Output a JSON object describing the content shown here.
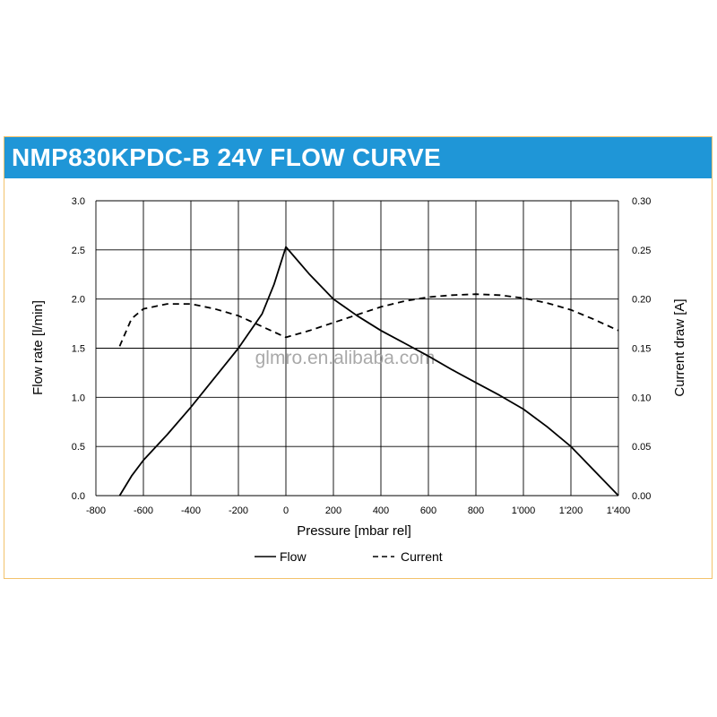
{
  "header": {
    "title": "NMP830KPDC-B 24V FLOW CURVE"
  },
  "watermark": "glmro.en.alibaba.com",
  "colors": {
    "title_bar": "#1f96d7",
    "panel_border": "#f3c26b",
    "lines": "#000000",
    "grid": "#000000"
  },
  "chart_data": {
    "type": "line",
    "title": "NMP830KPDC-B 24V FLOW CURVE",
    "xlabel": "Pressure [mbar rel]",
    "ylabel": "Flow rate [l/min]",
    "y2label": "Current draw [A]",
    "xlim": [
      -800,
      1400
    ],
    "ylim": [
      0,
      3.0
    ],
    "y2lim": [
      0,
      0.3
    ],
    "grid": true,
    "legend_position": "bottom",
    "x_ticks": [
      {
        "v": -800,
        "label": "-800"
      },
      {
        "v": -600,
        "label": "-600"
      },
      {
        "v": -400,
        "label": "-400"
      },
      {
        "v": -200,
        "label": "-200"
      },
      {
        "v": 0,
        "label": "0"
      },
      {
        "v": 200,
        "label": "200"
      },
      {
        "v": 400,
        "label": "400"
      },
      {
        "v": 600,
        "label": "600"
      },
      {
        "v": 800,
        "label": "800"
      },
      {
        "v": 1000,
        "label": "1'000"
      },
      {
        "v": 1200,
        "label": "1'200"
      },
      {
        "v": 1400,
        "label": "1'400"
      }
    ],
    "y_ticks": [
      {
        "v": 0,
        "label": "0.0"
      },
      {
        "v": 0.5,
        "label": "0.5"
      },
      {
        "v": 1.0,
        "label": "1.0"
      },
      {
        "v": 1.5,
        "label": "1.5"
      },
      {
        "v": 2.0,
        "label": "2.0"
      },
      {
        "v": 2.5,
        "label": "2.5"
      },
      {
        "v": 3.0,
        "label": "3.0"
      }
    ],
    "y2_ticks": [
      {
        "v": 0,
        "label": "0.00"
      },
      {
        "v": 0.05,
        "label": "0.05"
      },
      {
        "v": 0.1,
        "label": "0.10"
      },
      {
        "v": 0.15,
        "label": "0.15"
      },
      {
        "v": 0.2,
        "label": "0.20"
      },
      {
        "v": 0.25,
        "label": "0.25"
      },
      {
        "v": 0.3,
        "label": "0.30"
      }
    ],
    "series": [
      {
        "name": "Flow",
        "axis": "left",
        "style": "solid",
        "x": [
          -700,
          -650,
          -600,
          -500,
          -400,
          -300,
          -200,
          -100,
          -50,
          0,
          100,
          200,
          300,
          400,
          500,
          600,
          700,
          800,
          900,
          1000,
          1100,
          1200,
          1300,
          1400
        ],
        "y": [
          0.0,
          0.2,
          0.36,
          0.62,
          0.9,
          1.2,
          1.5,
          1.85,
          2.15,
          2.53,
          2.25,
          2.0,
          1.83,
          1.68,
          1.55,
          1.42,
          1.28,
          1.15,
          1.02,
          0.88,
          0.7,
          0.5,
          0.25,
          0.0
        ]
      },
      {
        "name": "Current",
        "axis": "right",
        "style": "dashed",
        "x": [
          -700,
          -650,
          -600,
          -500,
          -400,
          -300,
          -200,
          -100,
          0,
          100,
          200,
          300,
          400,
          500,
          600,
          700,
          800,
          900,
          1000,
          1100,
          1200,
          1300,
          1400
        ],
        "y": [
          0.152,
          0.18,
          0.19,
          0.195,
          0.195,
          0.19,
          0.183,
          0.172,
          0.161,
          0.168,
          0.176,
          0.184,
          0.192,
          0.198,
          0.202,
          0.204,
          0.205,
          0.204,
          0.201,
          0.196,
          0.189,
          0.179,
          0.168
        ]
      }
    ]
  }
}
